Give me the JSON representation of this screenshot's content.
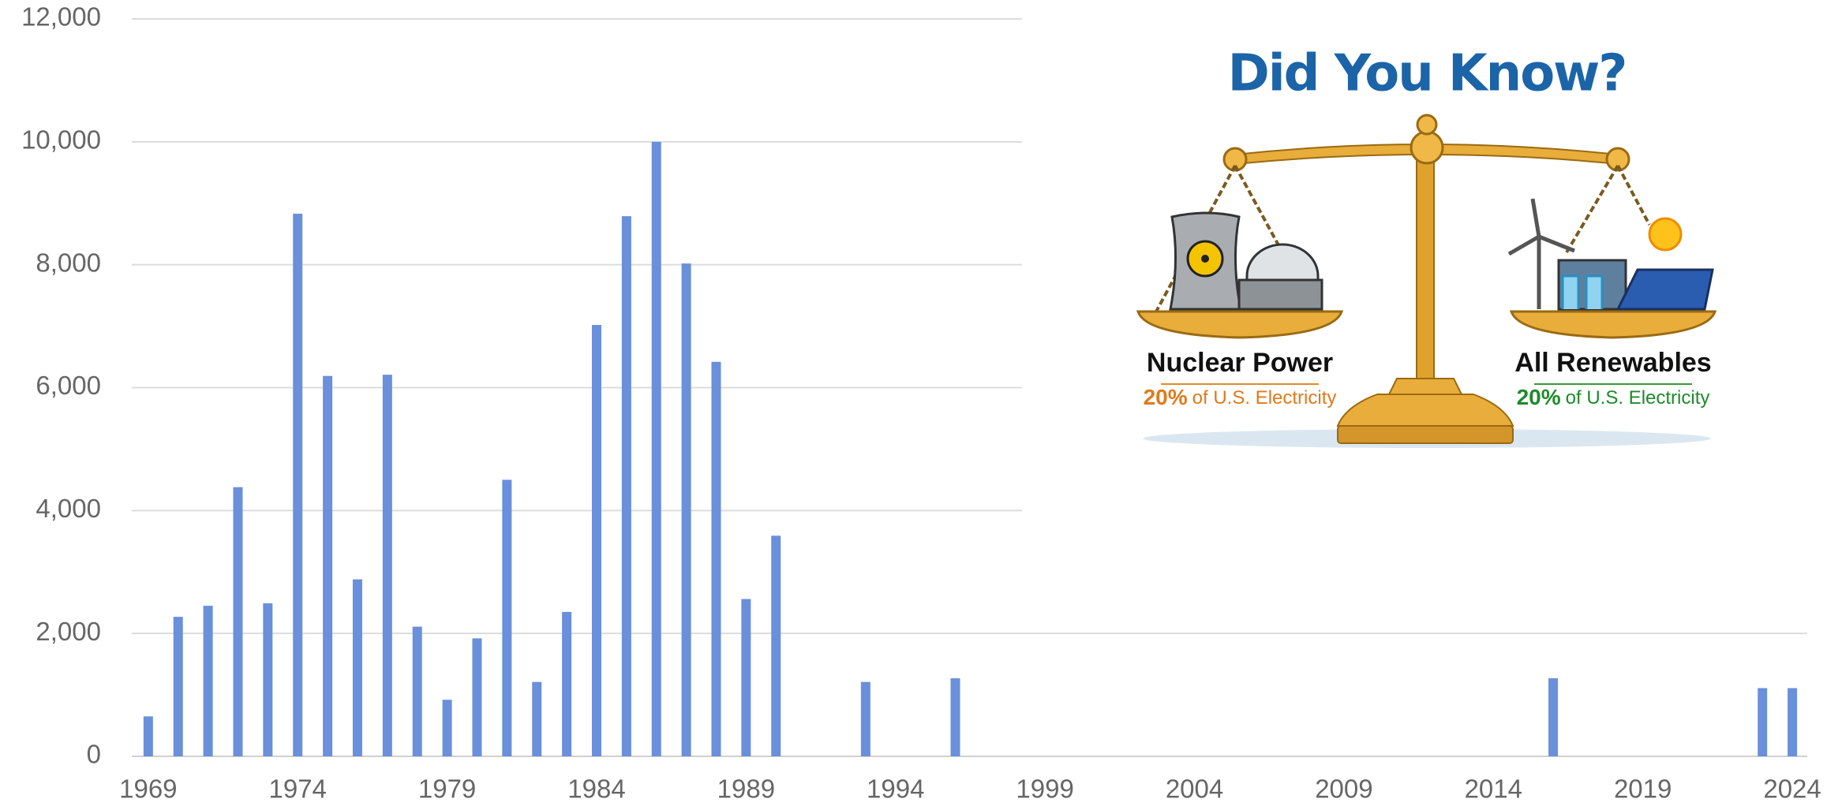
{
  "chart_data": {
    "type": "bar",
    "x": [
      1969,
      1970,
      1971,
      1972,
      1973,
      1974,
      1975,
      1976,
      1977,
      1978,
      1979,
      1980,
      1981,
      1982,
      1983,
      1984,
      1985,
      1986,
      1987,
      1988,
      1989,
      1990,
      1993,
      1996,
      2016,
      2023,
      2024
    ],
    "values": [
      650,
      2270,
      2450,
      4380,
      2490,
      8830,
      6190,
      2880,
      6210,
      2110,
      920,
      1920,
      4500,
      1210,
      2350,
      7020,
      8790,
      10000,
      8020,
      6420,
      2560,
      3590,
      1210,
      1270,
      1270,
      1110,
      1110
    ],
    "color": "#6a8fdb",
    "xlim": [
      1968.45,
      2024.5
    ],
    "xticks": [
      1969,
      1974,
      1979,
      1984,
      1989,
      1994,
      1999,
      2004,
      2009,
      2014,
      2019,
      2024
    ],
    "ylim": [
      0,
      12000
    ],
    "yticks": [
      0,
      {
        "value": 2000,
        "label": "2,000"
      },
      {
        "value": 4000,
        "label": "4,000"
      },
      {
        "value": 6000,
        "label": "6,000"
      },
      {
        "value": 8000,
        "label": "8,000"
      },
      {
        "value": 10000,
        "label": "10,000"
      },
      {
        "value": 12000,
        "label": "12,000"
      }
    ],
    "grid": true
  },
  "infographic": {
    "title": "Did You Know?",
    "left": {
      "label": "Nuclear Power",
      "share": "20%",
      "note": "of U.S. Electricity"
    },
    "right": {
      "label": "All Renewables",
      "share": "20%",
      "note": "of U.S. Electricity"
    }
  }
}
